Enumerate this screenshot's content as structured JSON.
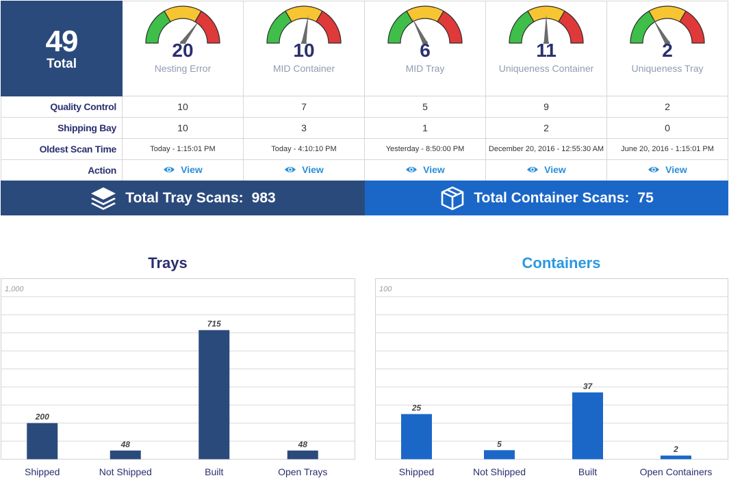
{
  "summary": {
    "total_value": "49",
    "total_label": "Total"
  },
  "gauges": [
    {
      "value": "20",
      "label": "Nesting Error",
      "level": 0.7
    },
    {
      "value": "10",
      "label": "MID Container",
      "level": 0.55
    },
    {
      "value": "6",
      "label": "MID Tray",
      "level": 0.35
    },
    {
      "value": "11",
      "label": "Uniqueness Container",
      "level": 0.5
    },
    {
      "value": "2",
      "label": "Uniqueness Tray",
      "level": 0.33
    }
  ],
  "rows": {
    "quality_control": {
      "label": "Quality Control",
      "values": [
        "10",
        "7",
        "5",
        "9",
        "2"
      ]
    },
    "shipping_bay": {
      "label": "Shipping Bay",
      "values": [
        "10",
        "3",
        "1",
        "2",
        "0"
      ]
    },
    "oldest_scan_time": {
      "label": "Oldest Scan Time",
      "values": [
        "Today - 1:15:01 PM",
        "Today - 4:10:10 PM",
        "Yesterday - 8:50:00 PM",
        "December 20, 2016 - 12:55:30 AM",
        "June 20, 2016 - 1:15:01 PM"
      ]
    },
    "action": {
      "label": "Action",
      "link_label": "View"
    }
  },
  "banners": {
    "tray": {
      "label": "Total Tray Scans:",
      "value": "983"
    },
    "container": {
      "label": "Total Container Scans:",
      "value": "75"
    }
  },
  "colors": {
    "navy": "#2b4a7c",
    "blue": "#1b67c8",
    "gauge_green": "#3fbf4a",
    "gauge_yellow": "#f7c531",
    "gauge_red": "#e0393a"
  },
  "chart_data": [
    {
      "type": "bar",
      "title": "Trays",
      "categories": [
        "Shipped",
        "Not Shipped",
        "Built",
        "Open Trays"
      ],
      "values": [
        200,
        48,
        715,
        48
      ],
      "ylim": [
        0,
        1000
      ],
      "max_tick_label": "1,000",
      "grid": true,
      "color": "#2b4a7c"
    },
    {
      "type": "bar",
      "title": "Containers",
      "categories": [
        "Shipped",
        "Not Shipped",
        "Built",
        "Open Containers"
      ],
      "values": [
        25,
        5,
        37,
        2
      ],
      "ylim": [
        0,
        100
      ],
      "max_tick_label": "100",
      "grid": true,
      "color": "#1b67c8"
    }
  ]
}
